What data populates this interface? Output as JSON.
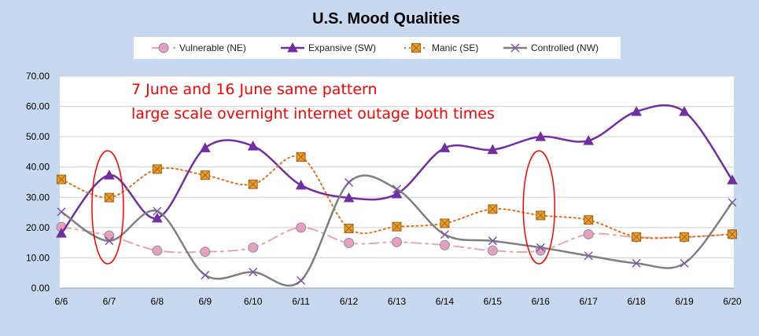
{
  "chart_data": {
    "type": "line",
    "title": "U.S.  Mood Qualities",
    "categories": [
      "6/6",
      "6/7",
      "6/8",
      "6/9",
      "6/10",
      "6/11",
      "6/12",
      "6/13",
      "6/14",
      "6/15",
      "6/16",
      "6/17",
      "6/18",
      "6/19",
      "6/20"
    ],
    "y_tick_labels": [
      "0.00",
      "10.00",
      "20.00",
      "30.00",
      "40.00",
      "50.00",
      "60.00",
      "70.00"
    ],
    "ylim": [
      0,
      70
    ],
    "grid": true,
    "legend_position": "top",
    "series": [
      {
        "name": "Vulnerable (NE)",
        "color": "#e6a6ae",
        "marker_fill": "#e8a0b4",
        "marker_stroke": "#7a8fc8",
        "marker": "circle",
        "line_style": "dashdot",
        "values": [
          20.2,
          17.3,
          12.4,
          12.0,
          13.4,
          20.0,
          14.9,
          15.2,
          14.2,
          12.4,
          12.4,
          17.8,
          16.8,
          16.8,
          17.8
        ]
      },
      {
        "name": "Expansive (SW)",
        "color": "#7030a0",
        "marker_fill": "#7030a0",
        "marker_stroke": "#7030a0",
        "marker": "triangle",
        "line_style": "solid",
        "values": [
          18.1,
          37.3,
          23.1,
          46.3,
          46.9,
          34.0,
          29.8,
          31.1,
          46.3,
          45.7,
          50.0,
          48.7,
          58.3,
          58.3,
          35.7
        ]
      },
      {
        "name": "Manic (SE)",
        "color": "#e07020",
        "marker_fill": "#e0a030",
        "marker_stroke": "#b06010",
        "marker": "square-x",
        "line_style": "dotted",
        "values": [
          35.9,
          29.9,
          39.3,
          37.3,
          34.3,
          43.3,
          19.7,
          20.3,
          21.4,
          26.1,
          24.0,
          22.5,
          16.9,
          16.9,
          17.8
        ]
      },
      {
        "name": "Controlled (NW)",
        "color": "#7f7f7f",
        "marker_fill": "none",
        "marker_stroke": "#7a5aa8",
        "marker": "x",
        "line_style": "solid",
        "values": [
          25.2,
          15.6,
          25.4,
          4.3,
          5.3,
          2.5,
          34.9,
          32.7,
          17.7,
          15.6,
          13.4,
          10.7,
          8.2,
          8.2,
          28.3
        ]
      }
    ],
    "annotations": [
      "7 June and 16 June same pattern",
      "large scale overnight internet outage both times"
    ],
    "highlight_categories": [
      "6/7",
      "6/16"
    ],
    "highlight_color": "#ff0000"
  }
}
